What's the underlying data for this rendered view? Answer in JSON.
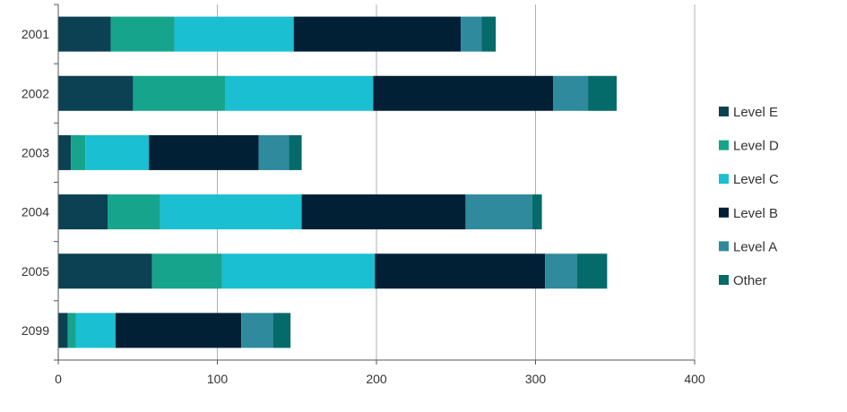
{
  "chart_data": {
    "type": "bar",
    "orientation": "horizontal",
    "stacked": true,
    "title": "",
    "xlabel": "",
    "ylabel": "",
    "xlim": [
      0,
      400
    ],
    "x_ticks": [
      0,
      100,
      200,
      300,
      400
    ],
    "grid": true,
    "legend_position": "right",
    "categories": [
      "2001",
      "2002",
      "2003",
      "2004",
      "2005",
      "2099"
    ],
    "series": [
      {
        "name": "Level E",
        "color": "#0b4152",
        "values": [
          33,
          47,
          8,
          31,
          59,
          6
        ]
      },
      {
        "name": "Level D",
        "color": "#16a48c",
        "values": [
          40,
          58,
          9,
          33,
          44,
          5
        ]
      },
      {
        "name": "Level C",
        "color": "#1abfd2",
        "values": [
          75,
          93,
          40,
          89,
          96,
          25
        ]
      },
      {
        "name": "Level B",
        "color": "#022035",
        "values": [
          105,
          113,
          69,
          103,
          107,
          79
        ]
      },
      {
        "name": "Level A",
        "color": "#2e8a9c",
        "values": [
          13,
          22,
          19,
          42,
          20,
          20
        ]
      },
      {
        "name": "Other",
        "color": "#056a6a",
        "values": [
          9,
          18,
          8,
          6,
          19,
          11
        ]
      }
    ]
  }
}
